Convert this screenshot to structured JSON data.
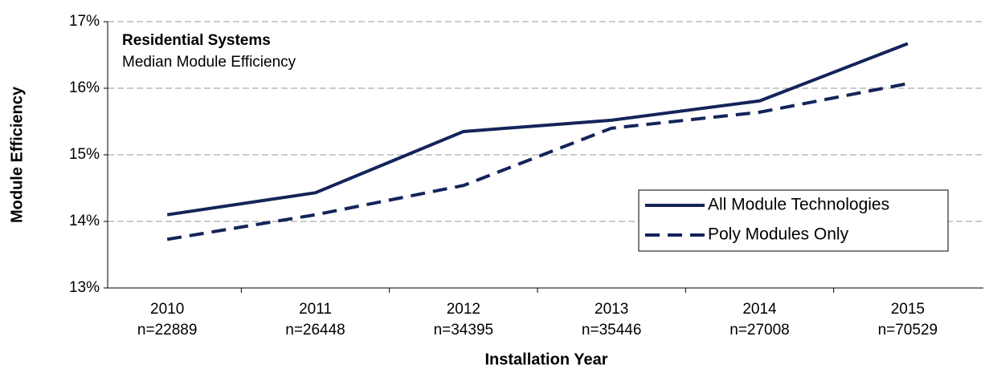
{
  "chart_data": {
    "type": "line",
    "title": "Residential Systems",
    "subtitle": "Median Module Efficiency",
    "x_label": "Installation Year",
    "y_label": "Module Efficiency",
    "categories": [
      "2010",
      "2011",
      "2012",
      "2013",
      "2014",
      "2015"
    ],
    "category_notes": [
      "n=22889",
      "n=26448",
      "n=34395",
      "n=35446",
      "n=27008",
      "n=70529"
    ],
    "series": [
      {
        "name": "All Module Technologies",
        "color": "#14245a",
        "dash": "solid",
        "values": [
          14.1,
          14.43,
          15.35,
          15.52,
          15.81,
          16.67
        ]
      },
      {
        "name": "Poly Modules Only",
        "color": "#14245a",
        "dash": "dashed",
        "values": [
          13.73,
          14.1,
          14.54,
          15.4,
          15.64,
          16.07
        ]
      }
    ],
    "ylim": [
      13,
      17
    ],
    "yticks": [
      {
        "value": 13,
        "label": "13%"
      },
      {
        "value": 14,
        "label": "14%"
      },
      {
        "value": 15,
        "label": "15%"
      },
      {
        "value": 16,
        "label": "16%"
      },
      {
        "value": 17,
        "label": "17%"
      }
    ],
    "grid": true,
    "legend": "lower right"
  }
}
